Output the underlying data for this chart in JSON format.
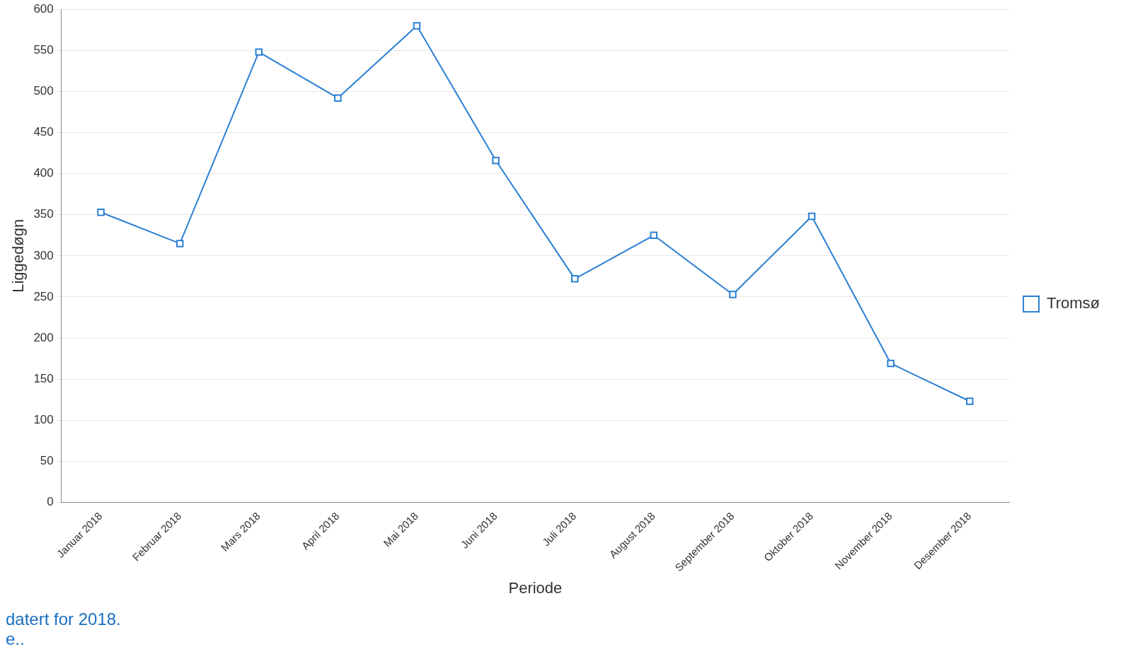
{
  "chart_data": {
    "type": "line",
    "xlabel": "Periode",
    "ylabel": "Liggedøgn",
    "categories": [
      "Januar 2018",
      "Februar 2018",
      "Mars 2018",
      "April 2018",
      "Mai 2018",
      "Juni 2018",
      "Juli 2018",
      "August 2018",
      "September 2018",
      "Oktober 2018",
      "November 2018",
      "Desember 2018"
    ],
    "series": [
      {
        "name": "Tromsø",
        "color": "#2a7fd4",
        "values": [
          353,
          315,
          548,
          492,
          580,
          416,
          272,
          325,
          253,
          348,
          169,
          123
        ]
      }
    ],
    "ylim": [
      0,
      600
    ],
    "yticks": [
      0,
      50,
      100,
      150,
      200,
      250,
      300,
      350,
      400,
      450,
      500,
      550,
      600
    ],
    "grid": "y",
    "legend": "right",
    "marker": "square",
    "line_style": "solid",
    "annotations": [
      "datert for 2018.",
      "e.."
    ]
  }
}
